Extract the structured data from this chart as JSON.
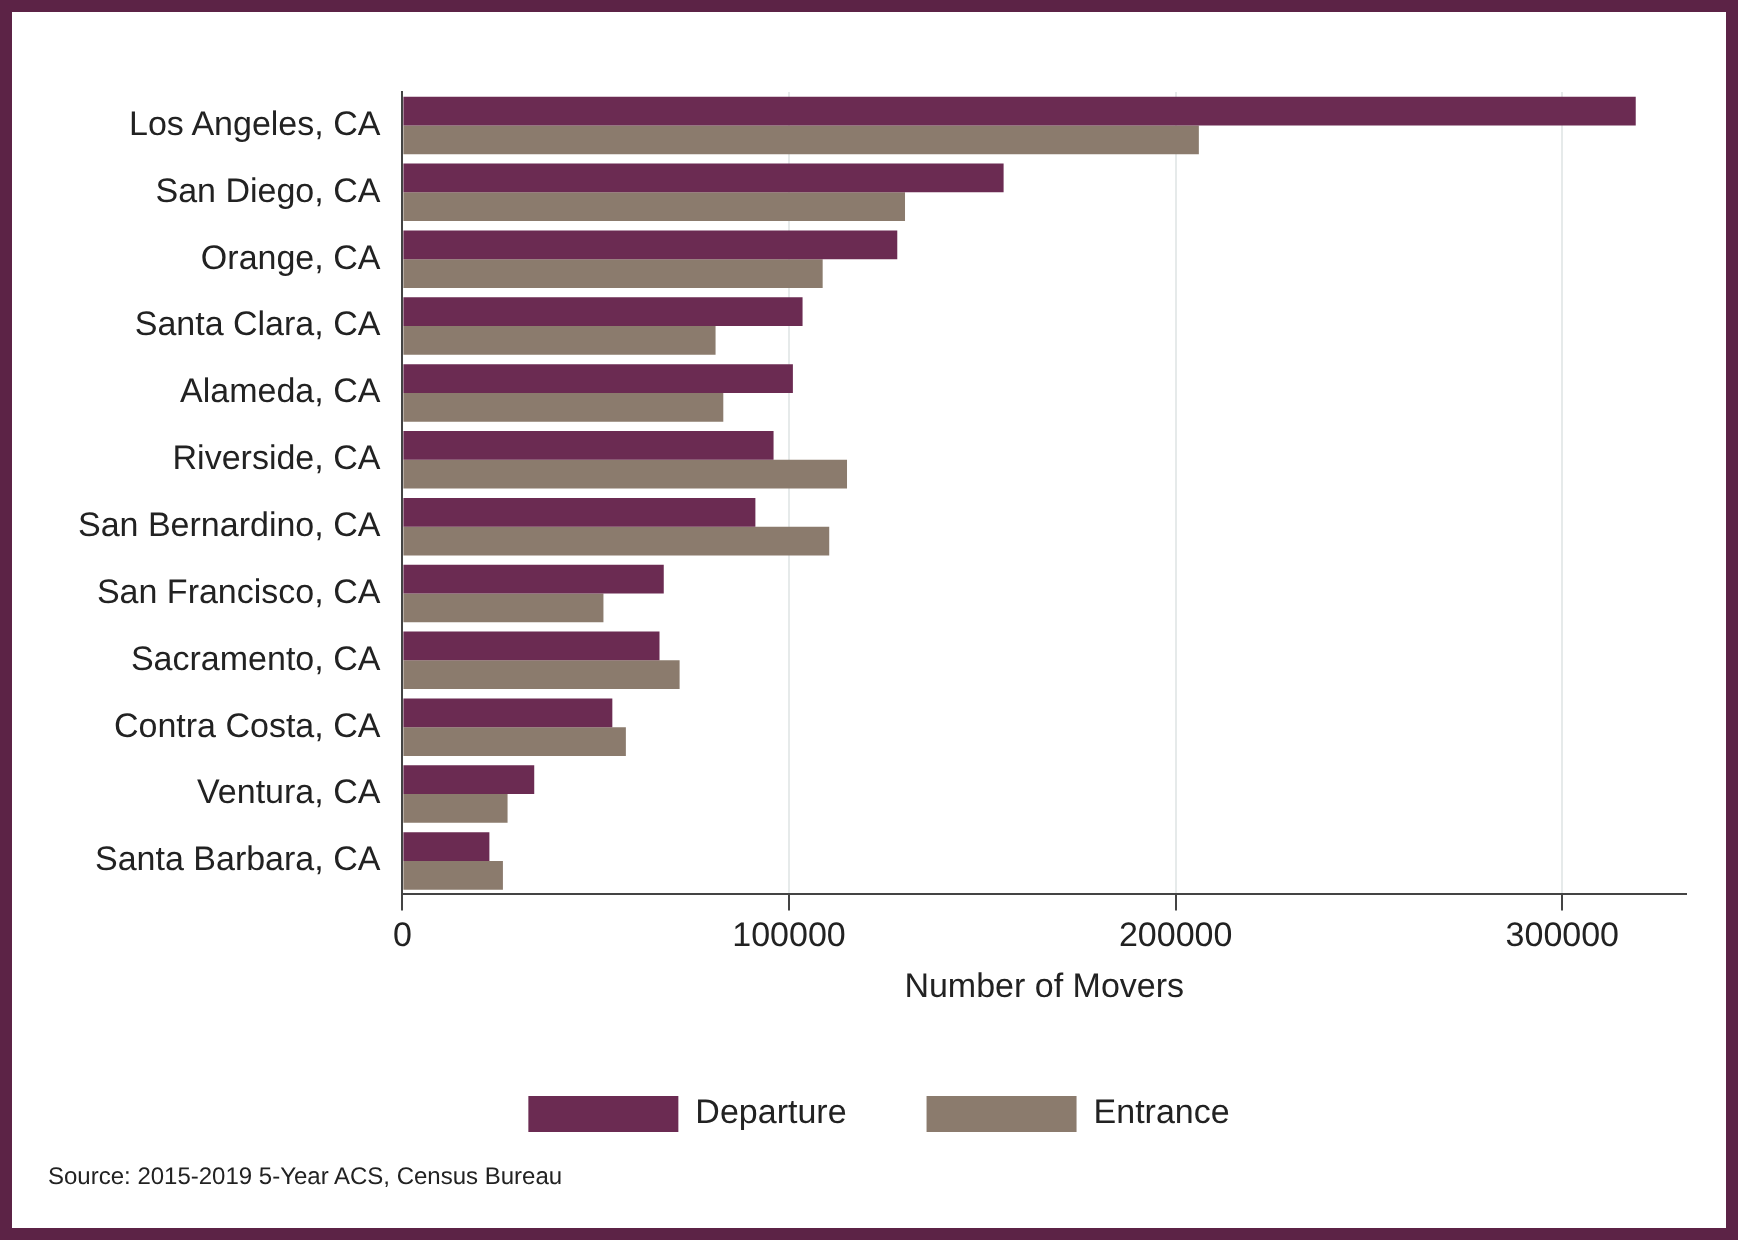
{
  "chart_data": {
    "type": "bar",
    "orientation": "horizontal",
    "xlabel": "Number of Movers",
    "categories": [
      "Los Angeles, CA",
      "San Diego, CA",
      "Orange, CA",
      "Santa Clara, CA",
      "Alameda, CA",
      "Riverside, CA",
      "San Bernardino, CA",
      "San Francisco, CA",
      "Sacramento, CA",
      "Contra Costa, CA",
      "Ventura, CA",
      "Santa Barbara, CA"
    ],
    "series": [
      {
        "name": "Departure",
        "color": "#6b2b52",
        "values": [
          319000,
          155500,
          128000,
          103500,
          101000,
          96000,
          91300,
          67600,
          66500,
          54300,
          34100,
          22500
        ]
      },
      {
        "name": "Entrance",
        "color": "#8b7b6d",
        "values": [
          206000,
          130000,
          108700,
          81000,
          83000,
          115000,
          110400,
          52000,
          71700,
          57800,
          27200,
          26000
        ]
      }
    ],
    "xlim": [
      0,
      332000
    ],
    "xticks": [
      0,
      100000,
      200000,
      300000
    ],
    "grid": "x",
    "legend": "bottom",
    "annotations": [
      "Source: 2015-2019 5-Year ACS, Census Bureau"
    ]
  }
}
